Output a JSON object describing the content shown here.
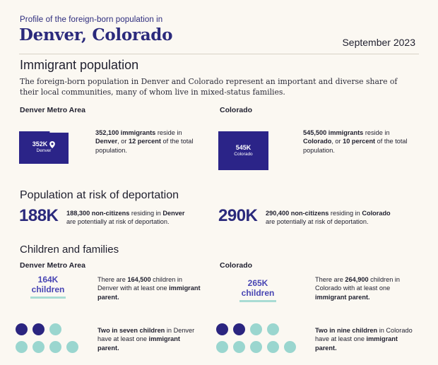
{
  "header": {
    "eyebrow": "Profile of the foreign-born population in",
    "title": "Denver, Colorado",
    "date": "September 2023"
  },
  "immigrant_population": {
    "heading": "Immigrant population",
    "intro": "The foreign-born population in Denver and Colorado represent an important and diverse share of their local communities, many of whom live in mixed-status families.",
    "denver": {
      "label": "Denver Metro Area",
      "map_value": "352K",
      "map_caption": "Denver",
      "stat_number": "352,100 immigrants",
      "stat_mid1": " reside in ",
      "stat_place": "Denver",
      "stat_mid2": ", or ",
      "stat_percent": "12 percent",
      "stat_end": " of the total population."
    },
    "colorado": {
      "label": "Colorado",
      "map_value": "545K",
      "map_caption": "Colorado",
      "stat_number": "545,500 immigrants",
      "stat_mid1": " reside in ",
      "stat_place": "Colorado",
      "stat_mid2": ", or ",
      "stat_percent": "10 percent",
      "stat_end": " of the total population."
    }
  },
  "deportation": {
    "heading": "Population at risk of deportation",
    "denver": {
      "big": "188K",
      "bold": "188,300 non-citizens",
      "mid": " residing in ",
      "place": "Denver",
      "end": "are potentially at risk of deportation."
    },
    "colorado": {
      "big": "290K",
      "bold": "290,400 non-citizens",
      "mid": " residing in ",
      "place": "Colorado",
      "end": "are potentially at risk of deportation."
    }
  },
  "children": {
    "heading": "Children and families",
    "denver": {
      "label": "Denver Metro Area",
      "kids_value": "164K",
      "kids_word": "children",
      "text_pre": "There are ",
      "text_num": "164,500",
      "text_mid": " children in Denver with at least one ",
      "text_bold": "immigrant parent.",
      "ratio_bold": "Two in seven children",
      "ratio_mid": " in Denver have at least one ",
      "ratio_bold2": "immigrant",
      "ratio_end": "parent.",
      "dots_highlighted": 2,
      "dots_total": 7
    },
    "colorado": {
      "label": "Colorado",
      "kids_value": "265K",
      "kids_word": "children",
      "text_pre": "There are ",
      "text_num": "264,900",
      "text_mid": " children in Colorado with at least one ",
      "text_bold": "immigrant parent.",
      "ratio_bold": "Two in nine children",
      "ratio_mid": " in Colorado have at least one ",
      "ratio_bold2": "immigrant",
      "ratio_end": "parent.",
      "dots_highlighted": 2,
      "dots_total": 9
    }
  },
  "colors": {
    "navy": "#2b2a7c",
    "map_fill": "#2b2488",
    "dot_dark": "#2b2580",
    "dot_light": "#9ad6cf",
    "background": "#fbf8f2"
  }
}
